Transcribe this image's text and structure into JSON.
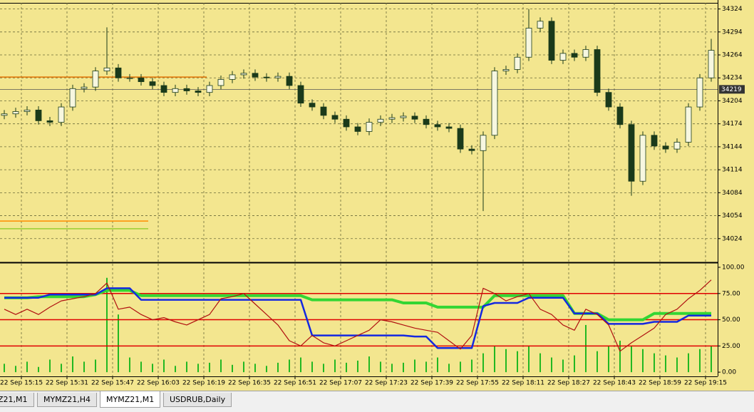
{
  "chart_data": [
    {
      "type": "candlestick",
      "x": [
        -6,
        -2,
        2,
        6,
        10,
        14,
        18,
        22,
        26,
        30,
        34,
        38,
        42,
        46,
        50,
        54,
        58,
        62,
        66,
        70,
        74,
        78,
        82,
        86,
        90,
        94,
        98,
        102,
        106,
        110,
        114,
        118,
        122,
        126,
        130,
        134,
        138,
        142,
        146,
        150,
        154,
        158,
        162,
        166,
        170,
        174,
        178,
        182,
        186,
        190,
        194,
        198,
        202,
        206,
        210,
        214,
        218,
        222,
        226,
        230,
        234,
        238,
        242
      ],
      "open": [
        34185,
        34187,
        34190,
        34192,
        34178,
        34176,
        34196,
        34220,
        34222,
        34243,
        34247,
        34234,
        34234,
        34229,
        34224,
        34215,
        34220,
        34217,
        34215,
        34224,
        34232,
        34238,
        34240,
        34235,
        34234,
        34236,
        34224,
        34201,
        34196,
        34185,
        34180,
        34170,
        34164,
        34176,
        34180,
        34182,
        34184,
        34180,
        34173,
        34170,
        34168,
        34141,
        34139,
        34159,
        34243,
        34245,
        34261,
        34299,
        34308,
        34257,
        34266,
        34261,
        34271,
        34215,
        34196,
        34173,
        34099,
        34159,
        34145,
        34141,
        34150,
        34196,
        34234
      ],
      "high": [
        34192,
        34195,
        34197,
        34197,
        34183,
        34201,
        34225,
        34227,
        34248,
        34300,
        34252,
        34239,
        34239,
        34234,
        34229,
        34225,
        34225,
        34222,
        34229,
        34237,
        34243,
        34245,
        34245,
        34240,
        34241,
        34241,
        34229,
        34206,
        34201,
        34190,
        34185,
        34175,
        34181,
        34185,
        34187,
        34189,
        34189,
        34185,
        34178,
        34175,
        34173,
        34146,
        34164,
        34248,
        34250,
        34266,
        34324,
        34313,
        34313,
        34271,
        34271,
        34276,
        34276,
        34220,
        34201,
        34178,
        34164,
        34164,
        34150,
        34155,
        34201,
        34239,
        34285
      ],
      "low": [
        34180,
        34182,
        34185,
        34173,
        34171,
        34171,
        34191,
        34215,
        34217,
        34238,
        34229,
        34229,
        34224,
        34219,
        34210,
        34210,
        34212,
        34210,
        34210,
        34219,
        34227,
        34233,
        34230,
        34229,
        34229,
        34219,
        34196,
        34191,
        34180,
        34175,
        34165,
        34159,
        34159,
        34171,
        34175,
        34177,
        34175,
        34168,
        34165,
        34163,
        34136,
        34134,
        34060,
        34154,
        34238,
        34240,
        34256,
        34294,
        34252,
        34252,
        34256,
        34256,
        34210,
        34191,
        34168,
        34080,
        34094,
        34140,
        34136,
        34136,
        34145,
        34191,
        34229
      ],
      "close": [
        34187,
        34190,
        34192,
        34178,
        34176,
        34196,
        34220,
        34222,
        34243,
        34247,
        34234,
        34234,
        34229,
        34224,
        34215,
        34220,
        34217,
        34215,
        34224,
        34232,
        34238,
        34240,
        34235,
        34234,
        34236,
        34224,
        34201,
        34196,
        34185,
        34180,
        34170,
        34164,
        34176,
        34180,
        34182,
        34184,
        34180,
        34173,
        34170,
        34168,
        34141,
        34139,
        34159,
        34243,
        34245,
        34261,
        34299,
        34308,
        34257,
        34266,
        34261,
        34271,
        34215,
        34196,
        34173,
        34099,
        34159,
        34145,
        34141,
        34150,
        34196,
        34234,
        34270
      ],
      "bull_color": "#f7f7e0",
      "bear_color": "#1a3a1a",
      "wick_color": "#1a3a1a",
      "xlim": [
        -7.5,
        244.25
      ],
      "ylim": [
        33994,
        34332
      ],
      "yticks": [
        34024,
        34054,
        34084,
        34114,
        34144,
        34174,
        34204,
        34234,
        34264,
        34294,
        34324
      ],
      "current_price": 34219,
      "levels": [
        {
          "value": 34235,
          "color": "#e07000"
        },
        {
          "value": 34047,
          "color": "#ff8c00"
        },
        {
          "value": 34037,
          "color": "#9acd32"
        }
      ],
      "grid": true
    },
    {
      "type": "line",
      "x": [
        -6,
        -2,
        2,
        6,
        10,
        14,
        18,
        22,
        26,
        30,
        34,
        38,
        42,
        46,
        50,
        54,
        58,
        62,
        66,
        70,
        74,
        78,
        82,
        86,
        90,
        94,
        98,
        102,
        106,
        110,
        114,
        118,
        122,
        126,
        130,
        134,
        138,
        142,
        146,
        150,
        154,
        158,
        162,
        166,
        170,
        174,
        178,
        182,
        186,
        190,
        194,
        198,
        202,
        206,
        210,
        214,
        218,
        222,
        226,
        230,
        234,
        238,
        242
      ],
      "xlim": [
        -7.5,
        244.25
      ],
      "xticks": [
        {
          "value": 0,
          "label": "22 Sep 15:15"
        },
        {
          "value": 16,
          "label": "22 Sep 15:31"
        },
        {
          "value": 32,
          "label": "22 Sep 15:47"
        },
        {
          "value": 48,
          "label": "22 Sep 16:03"
        },
        {
          "value": 64,
          "label": "22 Sep 16:19"
        },
        {
          "value": 80,
          "label": "22 Sep 16:35"
        },
        {
          "value": 96,
          "label": "22 Sep 16:51"
        },
        {
          "value": 112,
          "label": "22 Sep 17:07"
        },
        {
          "value": 128,
          "label": "22 Sep 17:23"
        },
        {
          "value": 144,
          "label": "22 Sep 17:39"
        },
        {
          "value": 160,
          "label": "22 Sep 17:55"
        },
        {
          "value": 176,
          "label": "22 Sep 18:11"
        },
        {
          "value": 192,
          "label": "22 Sep 18:27"
        },
        {
          "value": 208,
          "label": "22 Sep 18:43"
        },
        {
          "value": 224,
          "label": "22 Sep 18:59"
        },
        {
          "value": 240,
          "label": "22 Sep 19:15"
        }
      ],
      "ylim": [
        -4,
        103.4
      ],
      "yticks": [
        {
          "value": 0,
          "label": "0.00"
        },
        {
          "value": 25,
          "label": "25.00"
        },
        {
          "value": 50,
          "label": "50.00"
        },
        {
          "value": 75,
          "label": "75.00"
        },
        {
          "value": 100,
          "label": "100.00"
        }
      ],
      "levels": [
        {
          "value": 75,
          "color": "#e00000"
        },
        {
          "value": 50,
          "color": "#e00000"
        },
        {
          "value": 25,
          "color": "#e00000"
        }
      ],
      "series": [
        {
          "type": "bar",
          "color": "#22b822",
          "values": [
            8,
            6,
            10,
            5,
            12,
            8,
            15,
            10,
            12,
            90,
            55,
            14,
            10,
            8,
            12,
            6,
            10,
            8,
            9,
            12,
            7,
            10,
            8,
            6,
            9,
            12,
            14,
            10,
            8,
            12,
            9,
            11,
            15,
            10,
            8,
            9,
            12,
            10,
            14,
            8,
            10,
            12,
            18,
            25,
            22,
            20,
            25,
            18,
            14,
            12,
            16,
            45,
            20,
            25,
            30,
            25,
            22,
            18,
            16,
            14,
            18,
            22,
            25
          ]
        },
        {
          "type": "line",
          "color": "#33d633",
          "width": 4,
          "values": [
            71,
            71,
            71,
            72,
            72,
            72,
            72,
            72,
            74,
            78,
            78,
            78,
            73,
            73,
            73,
            73,
            73,
            73,
            73,
            73,
            73,
            73,
            73,
            73,
            73,
            73,
            73,
            69,
            69,
            69,
            69,
            69,
            69,
            69,
            69,
            66,
            66,
            66,
            62,
            62,
            62,
            62,
            62,
            73,
            73,
            73,
            73,
            73,
            73,
            73,
            56,
            56,
            56,
            50,
            50,
            50,
            50,
            56,
            56,
            56,
            56,
            56,
            56
          ]
        },
        {
          "type": "line",
          "color": "#1428e0",
          "width": 2.5,
          "values": [
            71,
            71,
            71,
            71,
            74,
            74,
            74,
            74,
            74,
            80,
            80,
            80,
            69,
            69,
            69,
            69,
            69,
            69,
            69,
            69,
            69,
            69,
            69,
            69,
            69,
            69,
            69,
            35,
            35,
            35,
            35,
            35,
            35,
            35,
            35,
            35,
            34,
            34,
            23,
            23,
            23,
            23,
            63,
            66,
            66,
            66,
            71,
            71,
            71,
            71,
            56,
            56,
            56,
            46,
            46,
            46,
            46,
            48,
            48,
            48,
            54,
            54,
            54
          ]
        },
        {
          "type": "line",
          "color": "#b01010",
          "width": 1.2,
          "values": [
            60,
            55,
            60,
            55,
            62,
            68,
            70,
            72,
            75,
            85,
            60,
            62,
            55,
            50,
            52,
            48,
            45,
            50,
            55,
            70,
            72,
            75,
            65,
            55,
            45,
            30,
            25,
            35,
            28,
            25,
            30,
            35,
            40,
            50,
            48,
            45,
            42,
            40,
            38,
            30,
            22,
            35,
            80,
            75,
            68,
            72,
            75,
            60,
            55,
            45,
            40,
            60,
            55,
            45,
            20,
            28,
            35,
            42,
            55,
            60,
            70,
            78,
            88
          ]
        }
      ],
      "grid": true
    }
  ],
  "tabs": [
    {
      "label": "Z21,M1",
      "active": false
    },
    {
      "label": "MYMZ21,H4",
      "active": false
    },
    {
      "label": "MYMZ21,M1",
      "active": true
    },
    {
      "label": "USDRUB,Daily",
      "active": false
    }
  ]
}
